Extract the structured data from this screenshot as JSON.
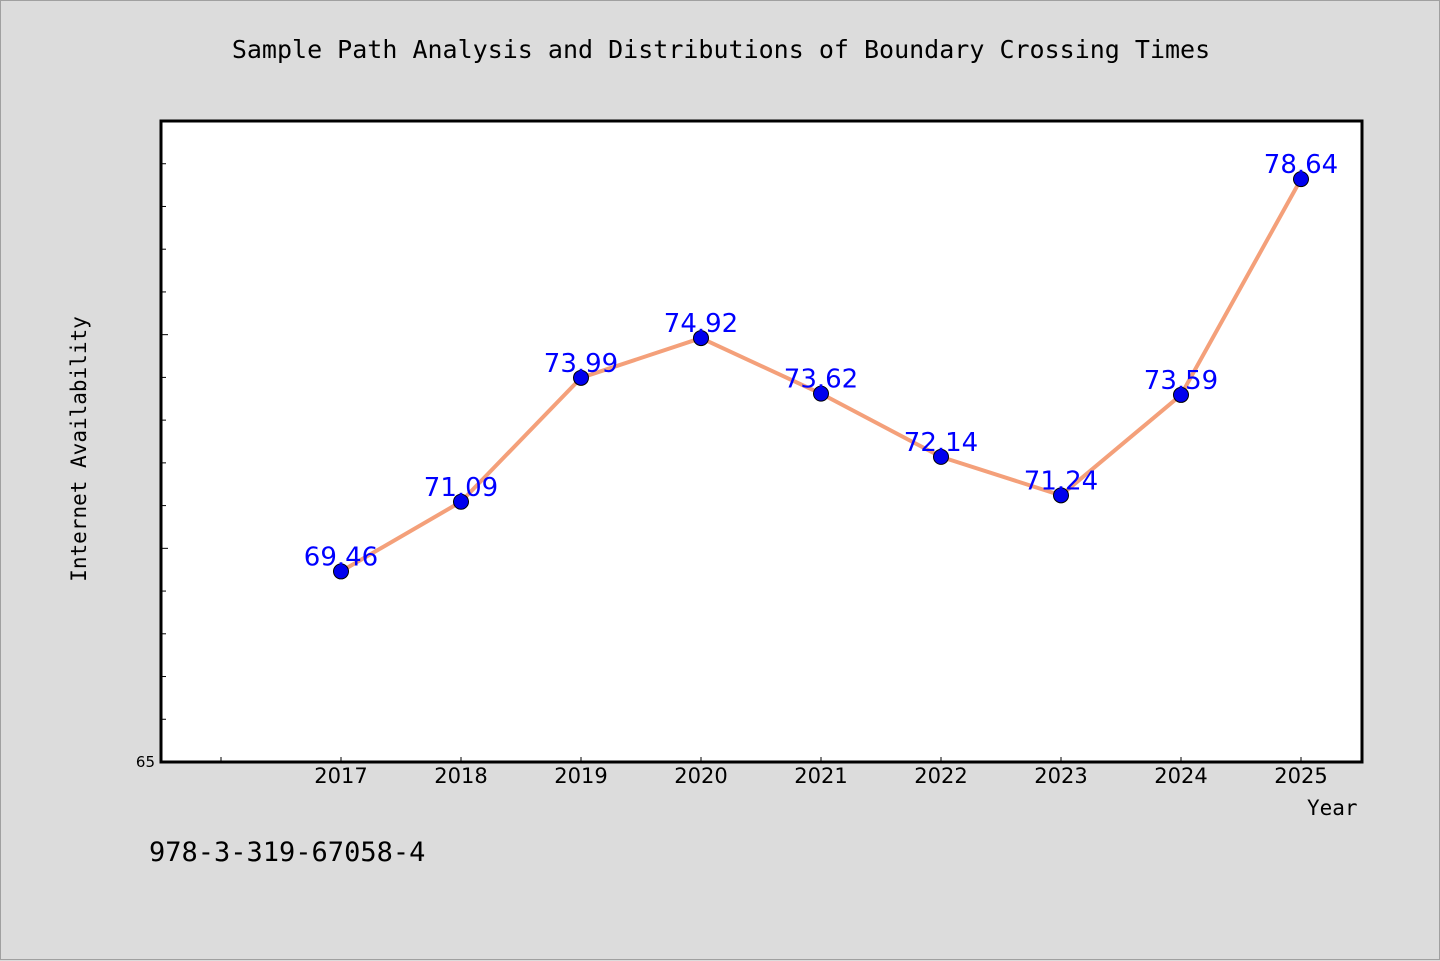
{
  "chart_data": {
    "type": "line",
    "title": "Sample Path Analysis and Distributions of Boundary Crossing Times",
    "xlabel": "Year",
    "ylabel": "Internet Availability",
    "categories": [
      "2017",
      "2018",
      "2019",
      "2020",
      "2021",
      "2022",
      "2023",
      "2024",
      "2025"
    ],
    "values": [
      69.46,
      71.09,
      73.99,
      74.92,
      73.62,
      72.14,
      71.24,
      73.59,
      78.64
    ],
    "data_labels": [
      "69.46",
      "71.09",
      "73.99",
      "74.92",
      "73.62",
      "72.14",
      "71.24",
      "73.59",
      "78.64"
    ],
    "ylim": [
      65,
      80
    ],
    "y_tick_labels": [
      "65"
    ],
    "grid": false,
    "legend": "none",
    "colors": {
      "line": "#f4a07a",
      "marker": "#0000ee",
      "data_label": "#0000ff",
      "background": "#dcdcdc",
      "plot_background": "#ffffff"
    }
  },
  "footnote": "978-3-319-67058-4"
}
